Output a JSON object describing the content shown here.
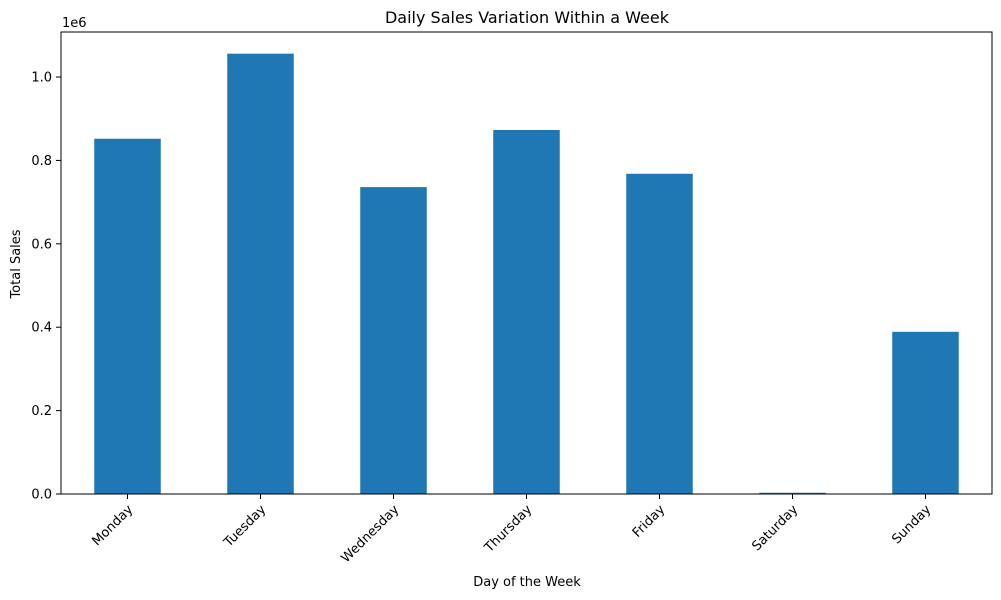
{
  "chart_data": {
    "type": "bar",
    "title": "Daily Sales Variation Within a Week",
    "xlabel": "Day of the Week",
    "ylabel": "Total Sales",
    "y_offset_label": "1e6",
    "categories": [
      "Monday",
      "Tuesday",
      "Wednesday",
      "Thursday",
      "Friday",
      "Saturday",
      "Sunday"
    ],
    "values": [
      852000,
      1056000,
      736000,
      873000,
      768000,
      3000,
      389000
    ],
    "ylim": [
      0,
      1108000
    ],
    "y_ticks": [
      0,
      200000,
      400000,
      600000,
      800000,
      1000000
    ],
    "y_tick_labels": [
      "0.0",
      "0.2",
      "0.4",
      "0.6",
      "0.8",
      "1.0"
    ],
    "bar_color": "#1f77b4",
    "grid": false,
    "legend": false
  }
}
